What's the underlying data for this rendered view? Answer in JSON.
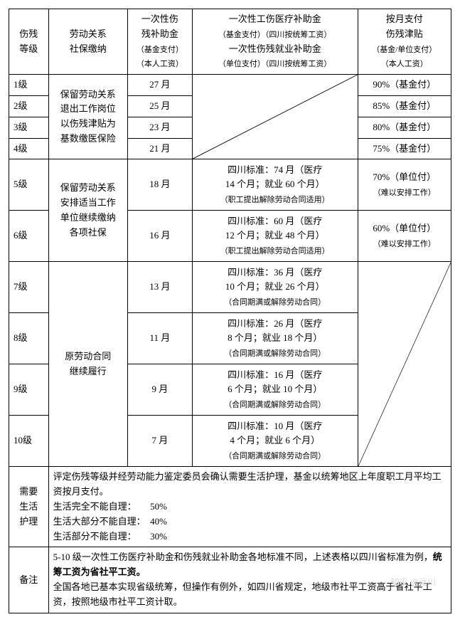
{
  "header": {
    "c1": "伤残\n等级",
    "c2": "劳动关系\n社保缴纳",
    "c3_main": "一次性伤\n残补助金",
    "c3_sub": "（基金支付）\n（本人工资）",
    "c4_line1": "一次性工伤医疗补助金",
    "c4_line1_sub": "（基金支付）（四川按统筹工资）",
    "c4_line2": "一次性伤残就业补助金",
    "c4_line2_sub": "（单位支付）（四川按统筹工资）",
    "c5_main": "按月支付\n伤残津贴",
    "c5_sub": "（基金/单位支付）\n（本人工资）"
  },
  "g1": {
    "c2": "保留劳动关系\n退出工作岗位\n以伤残津贴为\n基数缴医保险",
    "rows": [
      {
        "level": "1级",
        "months": "27 月",
        "allow": "90%（基金付）"
      },
      {
        "level": "2级",
        "months": "25 月",
        "allow": "85%（基金付）"
      },
      {
        "level": "3级",
        "months": "23 月",
        "allow": "80%（基金付）"
      },
      {
        "level": "4级",
        "months": "21 月",
        "allow": "75%（基金付）"
      }
    ]
  },
  "g2": {
    "c2": "保留劳动关系\n安排适当工作\n单位继续缴纳\n各项社保",
    "rows": [
      {
        "level": "5级",
        "months": "18 月",
        "detail": "四川标准：74 月（医疗\n14 个月；就业 60 个月）",
        "detail_sub": "（职工提出解除劳动合同适用）",
        "allow": "70%（单位付）",
        "allow_sub": "（难以安排工作）"
      },
      {
        "level": "6级",
        "months": "16 月",
        "detail": "四川标准：60 月（医疗\n12 个月；就业 48 个月）",
        "detail_sub": "（职工提出解除劳动合同适用）",
        "allow": "60%（单位付）",
        "allow_sub": "（难以安排工作）"
      }
    ]
  },
  "g3": {
    "c2": "原劳动合同\n继续履行",
    "rows": [
      {
        "level": "7级",
        "months": "13 月",
        "detail": "四川标准：36 月（医疗\n10 个月；就业 26 个月）",
        "detail_sub": "（合同期满或解除劳动合同）"
      },
      {
        "level": "8级",
        "months": "11 月",
        "detail": "四川标准：26 月（医疗\n8 个月；就业 18 个月）",
        "detail_sub": "（合同期满或解除劳动合同）"
      },
      {
        "level": "9级",
        "months": "9 月",
        "detail": "四川标准：16 月（医疗\n6 个月；就业 10 个月）",
        "detail_sub": "（合同期满或解除劳动合同）"
      },
      {
        "level": "10级",
        "months": "7 月",
        "detail": "四川标准：10 月（医疗\n4 个月；就业 6 个月）",
        "detail_sub": "（合同期满或解除劳动合同）"
      }
    ]
  },
  "care": {
    "label": "需要\n生活\n护理",
    "top": "评定伤残等级并经劳动能力鉴定委员会确认需要生活护理，基金以统筹地区上年度职工月平均工资按月支付。",
    "l1": "生活完全不能自理：　　50%",
    "l2": "生活大部分不能自理：　40%",
    "l3": "生活部分不能自理：　　30%"
  },
  "note": {
    "label": "备注",
    "p1a": "5-10 级一次性工伤医疗补助金和伤残就业补助金各地标准不同，上述表格以四川省标准为例，",
    "p1b": "统筹工资为省社平工资。",
    "p2": "全国各地已基本实现省级统筹，但操作有例外，如四川省规定，地级市社平工资高于省社平工资，按照地级市社平工资计取。"
  },
  "watermark": "知乎 @远川"
}
